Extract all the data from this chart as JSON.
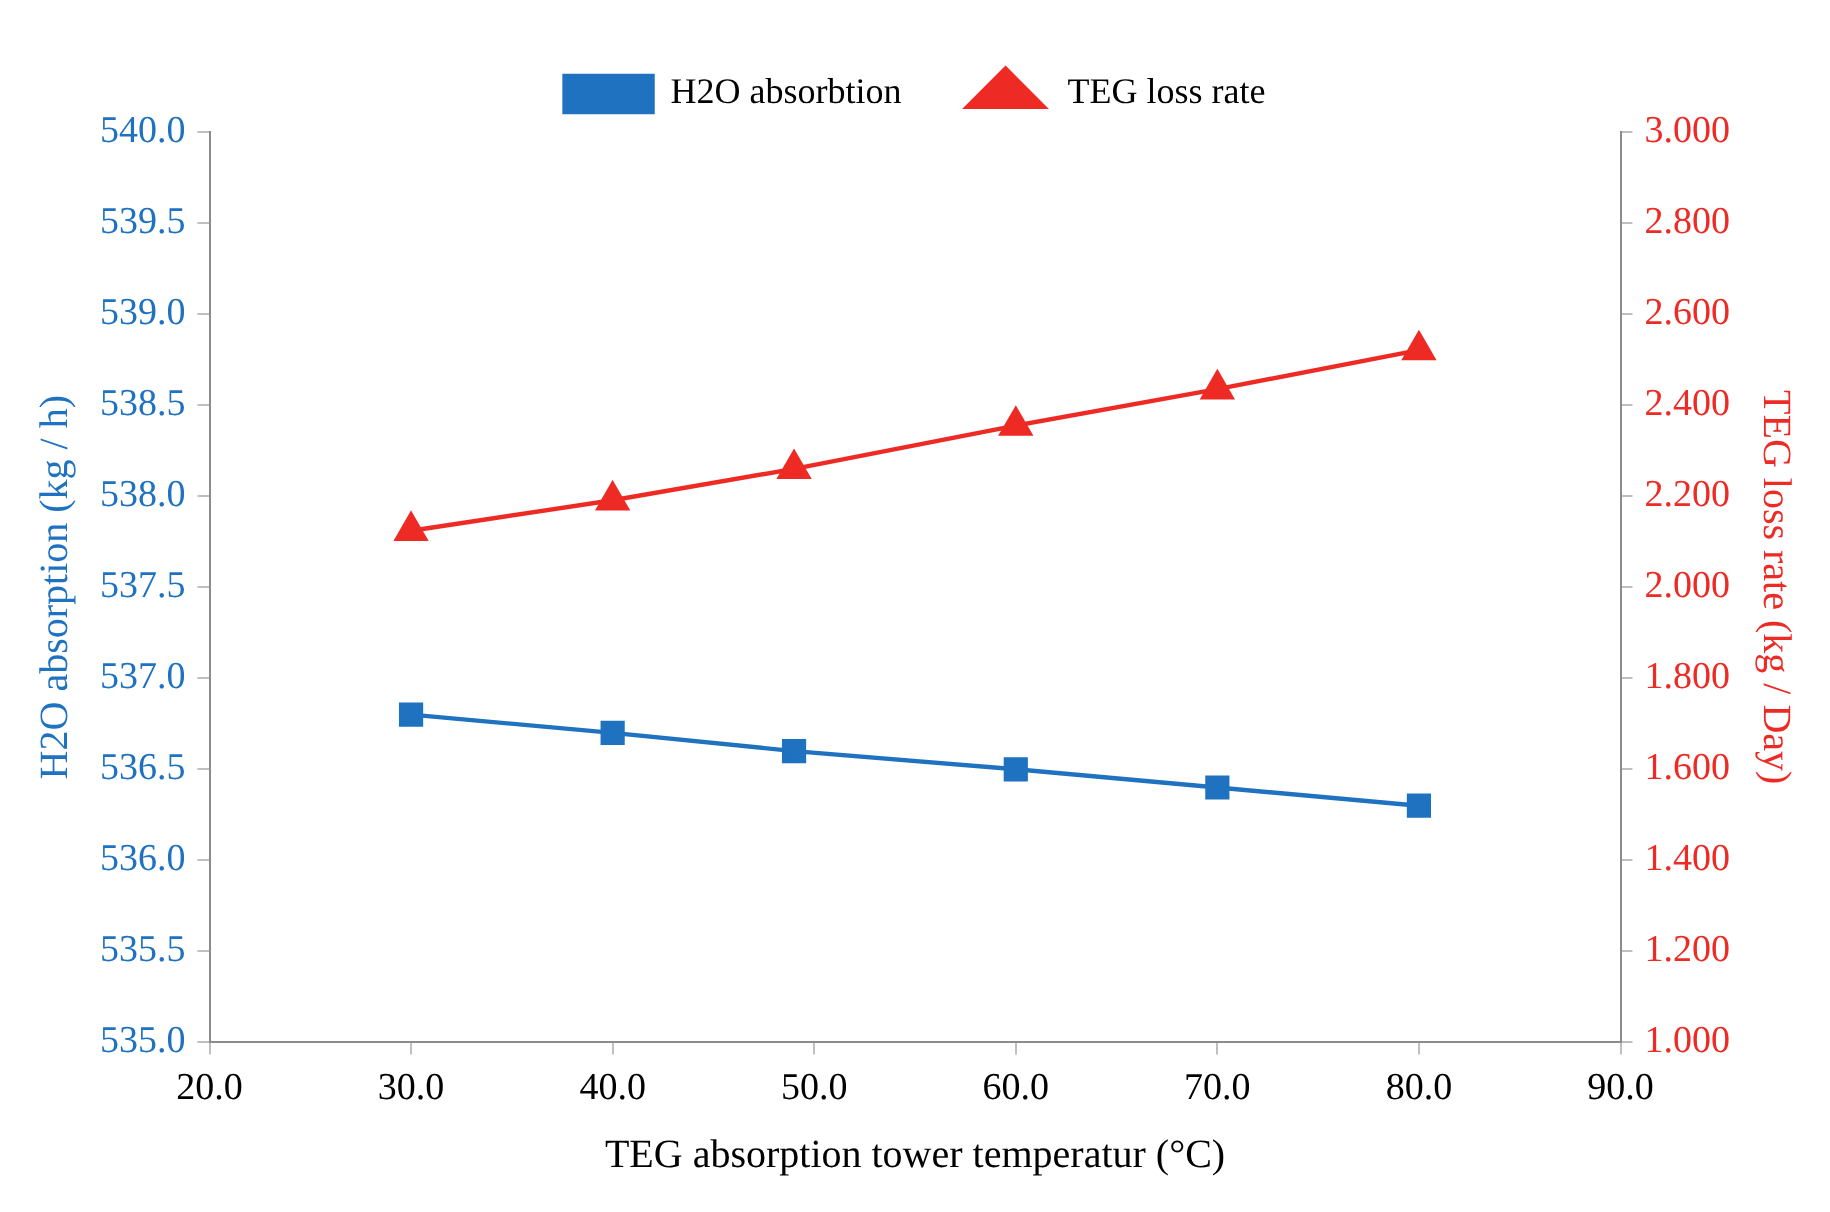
{
  "chart_data": {
    "type": "line",
    "xlabel": "TEG absorption tower temperatur (°C)",
    "ylabel": "H2O absorption (kg / h)",
    "y2label": "TEG loss rate (kg / Day)",
    "x": [
      30,
      40,
      49,
      60,
      70,
      80
    ],
    "series": [
      {
        "name": "H2O absorbtion",
        "color": "#1f72c0",
        "values": [
          536.8,
          536.7,
          536.6,
          536.5,
          536.4,
          536.3
        ],
        "marker": "square"
      },
      {
        "name": "TEG loss rate",
        "color": "#ee2a24",
        "values": [
          2.124,
          2.191,
          2.26,
          2.355,
          2.435,
          2.521
        ],
        "marker": "triangle",
        "axis": "y2"
      }
    ],
    "xlim": [
      20,
      90
    ],
    "xticks": [
      {
        "value": 20,
        "label": "20.0"
      },
      {
        "value": 30,
        "label": "30.0"
      },
      {
        "value": 40,
        "label": "40.0"
      },
      {
        "value": 50,
        "label": "50.0"
      },
      {
        "value": 60,
        "label": "60.0"
      },
      {
        "value": 70,
        "label": "70.0"
      },
      {
        "value": 80,
        "label": "80.0"
      },
      {
        "value": 90,
        "label": "90.0"
      }
    ],
    "ylim": [
      535,
      540
    ],
    "yticks": [
      {
        "value": 535,
        "label": "535.0"
      },
      {
        "value": 535.5,
        "label": "535.5"
      },
      {
        "value": 536,
        "label": "536.0"
      },
      {
        "value": 536.5,
        "label": "536.5"
      },
      {
        "value": 537,
        "label": "537.0"
      },
      {
        "value": 537.5,
        "label": "537.5"
      },
      {
        "value": 538,
        "label": "538.0"
      },
      {
        "value": 538.5,
        "label": "538.5"
      },
      {
        "value": 539,
        "label": "539.0"
      },
      {
        "value": 539.5,
        "label": "539.5"
      },
      {
        "value": 540,
        "label": "540.0"
      }
    ],
    "y2lim": [
      1,
      3
    ],
    "y2ticks": [
      {
        "value": 1,
        "label": "1.000"
      },
      {
        "value": 1.2,
        "label": "1.200"
      },
      {
        "value": 1.4,
        "label": "1.400"
      },
      {
        "value": 1.6,
        "label": "1.600"
      },
      {
        "value": 1.8,
        "label": "1.800"
      },
      {
        "value": 2,
        "label": "2.000"
      },
      {
        "value": 2.2,
        "label": "2.200"
      },
      {
        "value": 2.4,
        "label": "2.400"
      },
      {
        "value": 2.6,
        "label": "2.600"
      },
      {
        "value": 2.8,
        "label": "2.800"
      },
      {
        "value": 3,
        "label": "3.000"
      }
    ],
    "grid": false,
    "legend": "top",
    "line_style": "solid"
  }
}
